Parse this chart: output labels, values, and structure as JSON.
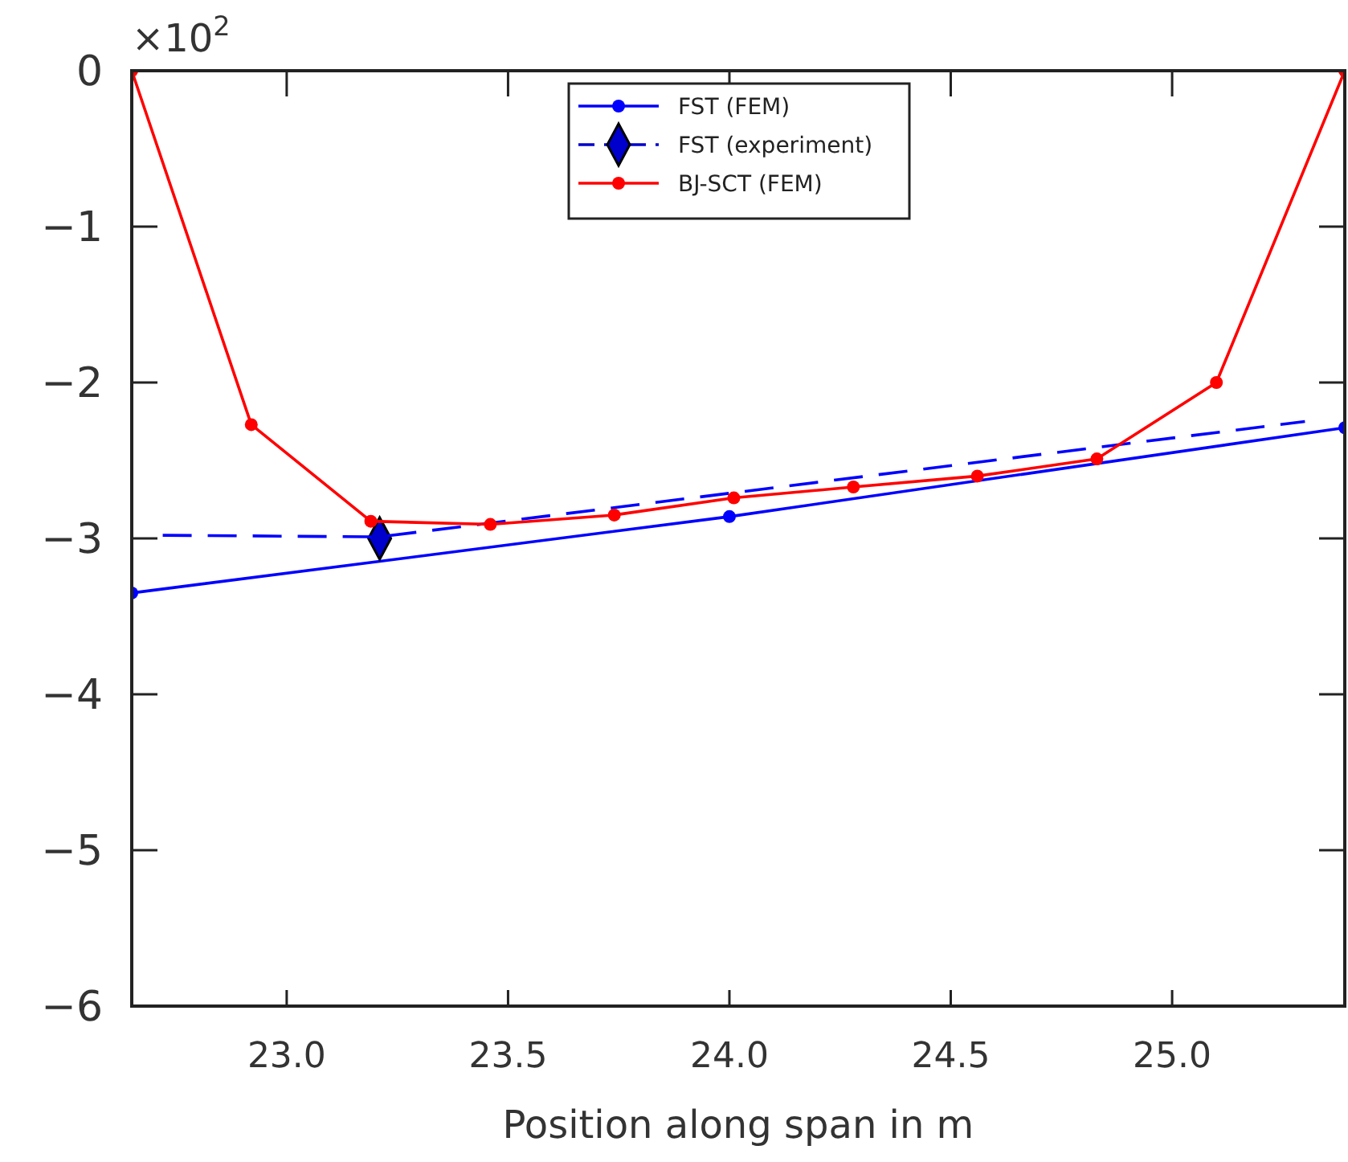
{
  "chart_data": {
    "type": "line",
    "xlabel": "Position along span in m",
    "annotations": [
      "×10$^{2}$"
    ],
    "xlim": [
      22.65,
      25.39
    ],
    "xticks": [
      {
        "value": 23,
        "label": "23.0"
      },
      {
        "value": 23.5,
        "label": "23.5"
      },
      {
        "value": 24,
        "label": "24.0"
      },
      {
        "value": 24.5,
        "label": "24.5"
      },
      {
        "value": 25,
        "label": "25.0"
      }
    ],
    "ylim": [
      -6,
      0
    ],
    "yticks": [
      {
        "value": -6,
        "label": "−6"
      },
      {
        "value": -5,
        "label": "−5"
      },
      {
        "value": -4,
        "label": "−4"
      },
      {
        "value": -3,
        "label": "−3"
      },
      {
        "value": -2,
        "label": "−2"
      },
      {
        "value": -1,
        "label": "−1"
      },
      0
    ],
    "grid": false,
    "legend": "top",
    "series": [
      {
        "name": "FST (FEM)",
        "color": "#0000ff",
        "marker": "circle",
        "line_style": "solid",
        "x": [
          22.65,
          24.0,
          25.39
        ],
        "values": [
          -3.35,
          -2.86,
          -2.29
        ]
      },
      {
        "name": "FST (experiment)",
        "type": "scatter",
        "color": "#0000cc",
        "marker": "diamond",
        "line_style": "dashed",
        "x": [
          23.21
        ],
        "values": [
          -3.0
        ]
      },
      {
        "color": "#0000ff",
        "marker": "none",
        "line_style": "dashed",
        "x": [
          22.72,
          23.21,
          25.3
        ],
        "values": [
          -2.98,
          -2.99,
          -2.25
        ]
      },
      {
        "name": "BJ-SCT (FEM)",
        "color": "#ff0000",
        "marker": "circle",
        "line_style": "solid",
        "x": [
          22.65,
          22.92,
          23.19,
          23.46,
          23.74,
          24.01,
          24.28,
          24.56,
          24.83,
          25.1,
          25.39
        ],
        "values": [
          0,
          -2.27,
          -2.89,
          -2.91,
          -2.85,
          -2.74,
          -2.67,
          -2.6,
          -2.49,
          -2.0,
          0
        ]
      }
    ]
  }
}
